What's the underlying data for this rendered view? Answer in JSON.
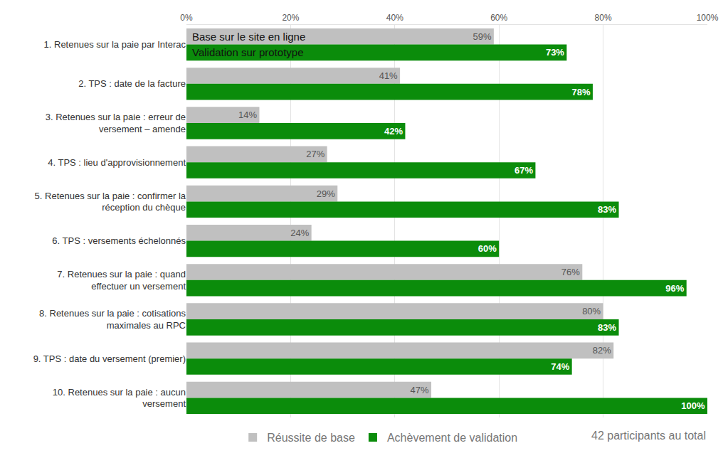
{
  "chart_data": {
    "type": "bar",
    "orientation": "horizontal",
    "categories": [
      "1. Retenues sur la paie par Interac",
      "2. TPS : date de la facture",
      "3. Retenues sur la paie : erreur de versement – amende",
      "4. TPS : lieu d'approvisionnement",
      "5. Retenues sur la paie : confirmer la réception du chèque",
      "6. TPS : versements échelonnés",
      "7. Retenues sur la paie : quand effectuer un versement",
      "8. Retenues sur la paie : cotisations maximales au RPC",
      "9. TPS : date du versement (premier)",
      "10. Retenues sur la paie : aucun versement"
    ],
    "series": [
      {
        "name": "Réussite de base",
        "color": "#c0c0c0",
        "values": [
          59,
          41,
          14,
          27,
          29,
          24,
          76,
          80,
          82,
          47
        ],
        "value_labels": [
          "59%",
          "41%",
          "14%",
          "27%",
          "29%",
          "24%",
          "76%",
          "80%",
          "82%",
          "47%"
        ]
      },
      {
        "name": "Achèvement de validation",
        "color": "#0b8c0b",
        "values": [
          73,
          78,
          42,
          67,
          83,
          60,
          96,
          83,
          74,
          100
        ],
        "value_labels": [
          "73%",
          "78%",
          "42%",
          "67%",
          "83%",
          "60%",
          "96%",
          "83%",
          "74%",
          "100%"
        ]
      }
    ],
    "xlim": [
      0,
      100
    ],
    "xticks": [
      {
        "value": 0,
        "label": "0%"
      },
      {
        "value": 20,
        "label": "20%"
      },
      {
        "value": 40,
        "label": "40%"
      },
      {
        "value": 60,
        "label": "60%"
      },
      {
        "value": 80,
        "label": "80%"
      },
      {
        "value": 100,
        "label": "100%"
      }
    ],
    "annotations": [
      "Base sur le site en ligne",
      "Validation sur prototype",
      "42 participants au total"
    ],
    "grid": true,
    "legend": "bottom",
    "data_labels": true
  }
}
